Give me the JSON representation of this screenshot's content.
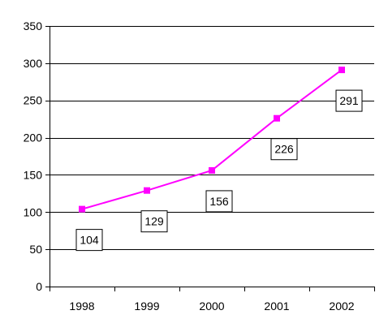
{
  "chart_data": {
    "type": "line",
    "categories": [
      "1998",
      "1999",
      "2000",
      "2001",
      "2002"
    ],
    "series": [
      {
        "values": [
          104,
          129,
          156,
          226,
          291
        ]
      }
    ],
    "data_labels": [
      "104",
      "129",
      "156",
      "226",
      "291"
    ],
    "y_ticks": [
      "0",
      "50",
      "100",
      "150",
      "200",
      "250",
      "300",
      "350"
    ],
    "ylim": [
      0,
      350
    ],
    "grid": true,
    "legend": "none",
    "title": "",
    "xlabel": "",
    "ylabel": "",
    "line_color": "#ff00ff",
    "marker": "square"
  }
}
